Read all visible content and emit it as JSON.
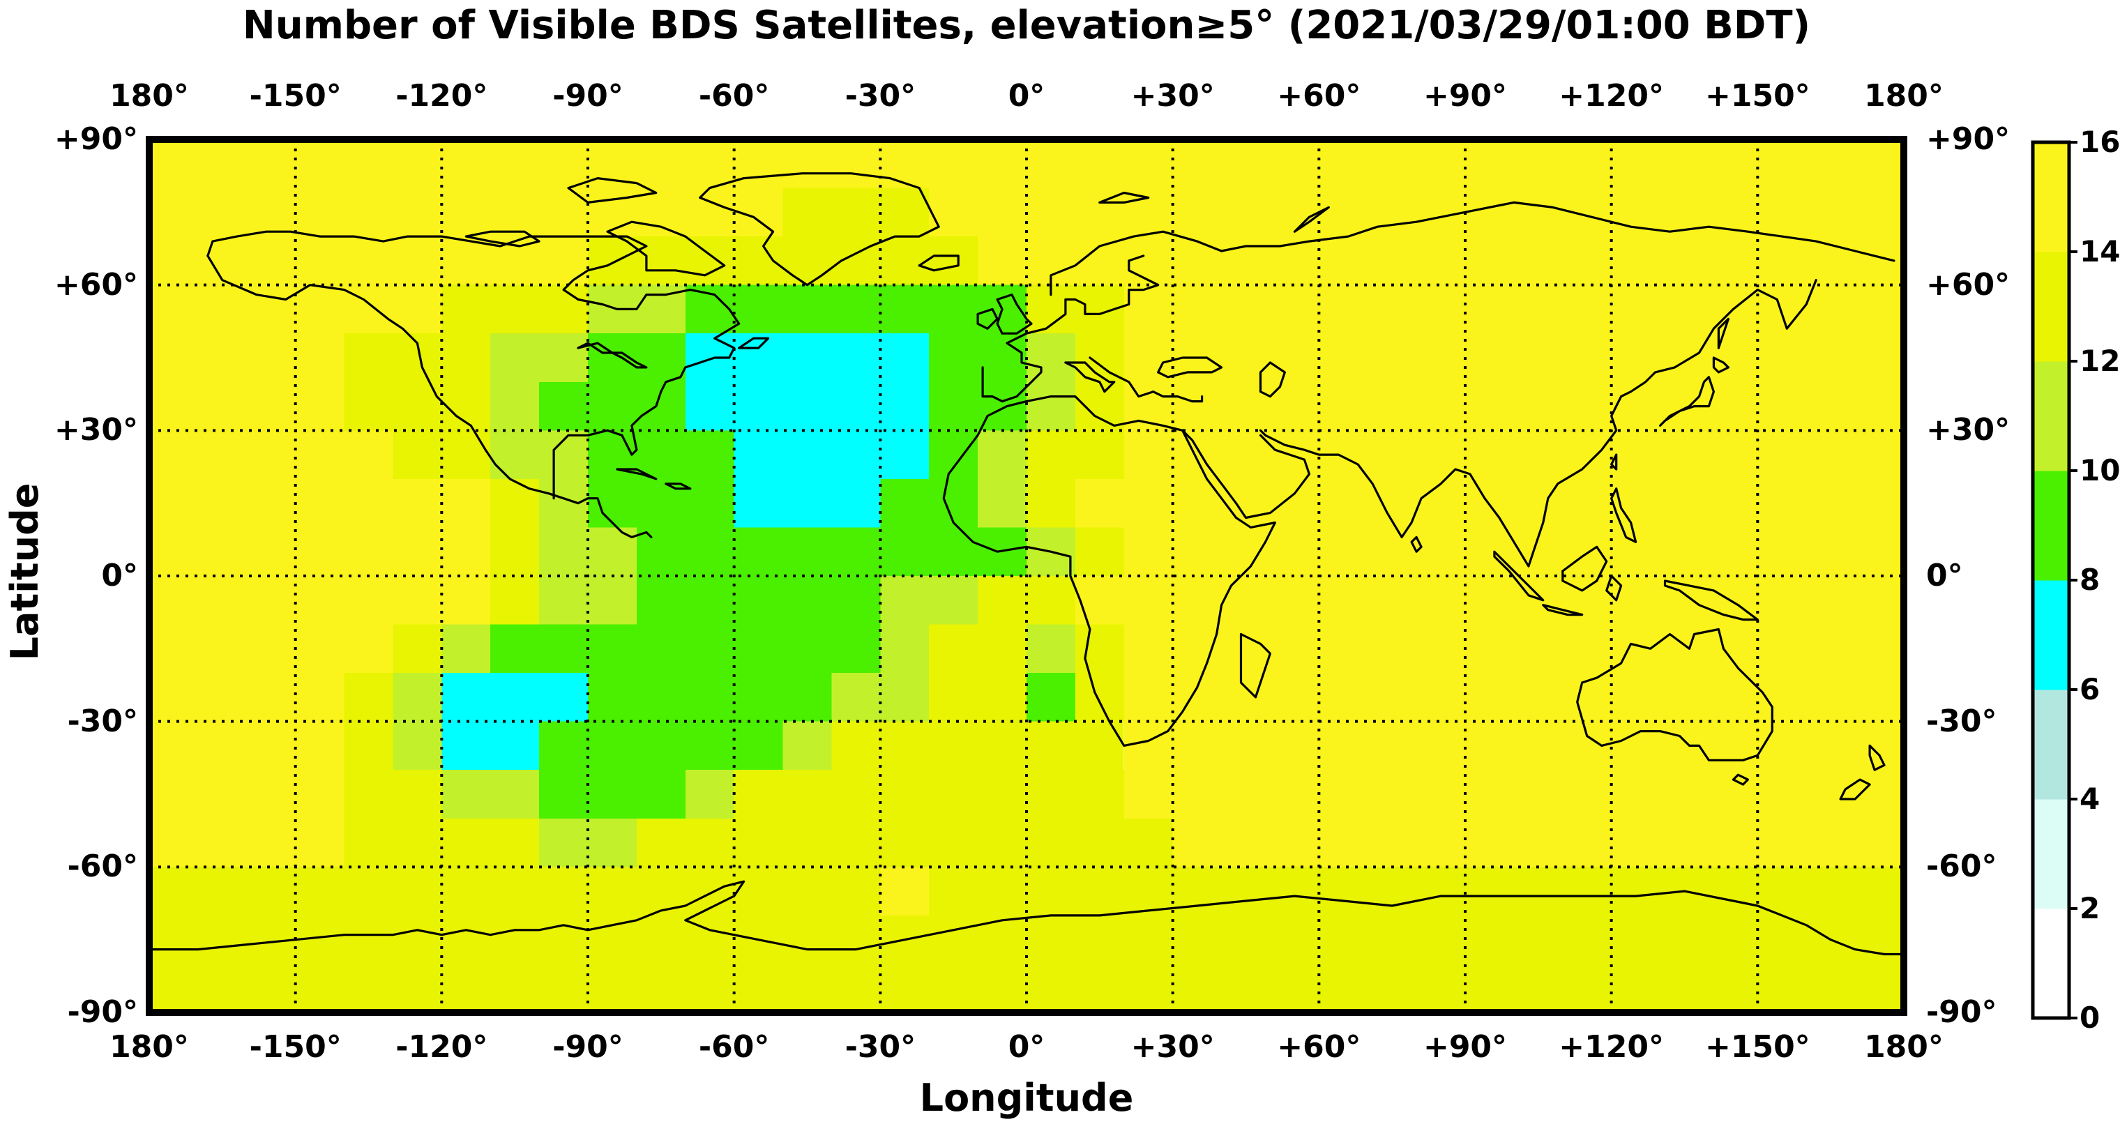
{
  "title": "Number of Visible BDS Satellites, elevation≥5° (2021/03/29/01:00 BDT)",
  "axes": {
    "x": {
      "label": "Longitude",
      "tick_values": [
        -180,
        -150,
        -120,
        -90,
        -60,
        -30,
        0,
        30,
        60,
        90,
        120,
        150,
        180
      ],
      "tick_labels": [
        "180°",
        "-150°",
        "-120°",
        "-90°",
        "-60°",
        "-30°",
        "0°",
        "+30°",
        "+60°",
        "+90°",
        "+120°",
        "+150°",
        "180°"
      ]
    },
    "y": {
      "label": "Latitude",
      "tick_values": [
        90,
        60,
        30,
        0,
        -30,
        -60,
        -90
      ],
      "tick_labels": [
        "+90°",
        "+60°",
        "+30°",
        "0°",
        "-30°",
        "-60°",
        "-90°"
      ]
    }
  },
  "colorbar": {
    "min": 0,
    "max": 16,
    "tick_step": 2,
    "tick_labels_top_to_bottom": [
      "16",
      "14",
      "12",
      "10",
      "8",
      "6",
      "4",
      "2",
      "0"
    ],
    "segments": [
      {
        "range": [
          0,
          2
        ],
        "color": "#FFFFFF"
      },
      {
        "range": [
          2,
          4
        ],
        "color": "#DCFDF6"
      },
      {
        "range": [
          4,
          6
        ],
        "color": "#B2E7E0"
      },
      {
        "range": [
          6,
          8
        ],
        "color": "#00FFFF"
      },
      {
        "range": [
          8,
          10
        ],
        "color": "#4AF000"
      },
      {
        "range": [
          10,
          12
        ],
        "color": "#C2F12B"
      },
      {
        "range": [
          12,
          14
        ],
        "color": "#E9F402"
      },
      {
        "range": [
          14,
          16
        ],
        "color": "#FBF41C"
      }
    ]
  },
  "chart_data": {
    "type": "heatmap",
    "title": "Number of Visible BDS Satellites, elevation≥5° (2021/03/29/01:00 BDT)",
    "xlabel": "Longitude",
    "ylabel": "Latitude",
    "x_range": [
      -180,
      180
    ],
    "y_range": [
      -90,
      90
    ],
    "grid_step_deg": 30,
    "cell_deg": 10,
    "value_units": "visible BDS satellites",
    "encoding": "rows from +90N to -90S, each row = run-length pairs [cell_count, value], 36 cells of 10 deg per row",
    "grid_runs": [
      [
        [
          36,
          15
        ]
      ],
      [
        [
          13,
          15
        ],
        [
          3,
          13
        ],
        [
          20,
          15
        ]
      ],
      [
        [
          9,
          15
        ],
        [
          8,
          13
        ],
        [
          19,
          15
        ]
      ],
      [
        [
          6,
          15
        ],
        [
          3,
          13
        ],
        [
          2,
          11
        ],
        [
          7,
          9
        ],
        [
          2,
          13
        ],
        [
          16,
          15
        ]
      ],
      [
        [
          4,
          15
        ],
        [
          3,
          13
        ],
        [
          2,
          11
        ],
        [
          2,
          9
        ],
        [
          5,
          7
        ],
        [
          2,
          9
        ],
        [
          1,
          11
        ],
        [
          1,
          13
        ],
        [
          16,
          15
        ]
      ],
      [
        [
          4,
          15
        ],
        [
          3,
          13
        ],
        [
          1,
          11
        ],
        [
          3,
          9
        ],
        [
          5,
          7
        ],
        [
          2,
          9
        ],
        [
          1,
          11
        ],
        [
          1,
          13
        ],
        [
          16,
          15
        ]
      ],
      [
        [
          5,
          15
        ],
        [
          2,
          13
        ],
        [
          2,
          11
        ],
        [
          3,
          9
        ],
        [
          4,
          7
        ],
        [
          1,
          9
        ],
        [
          1,
          11
        ],
        [
          2,
          13
        ],
        [
          16,
          15
        ]
      ],
      [
        [
          7,
          15
        ],
        [
          1,
          13
        ],
        [
          1,
          11
        ],
        [
          3,
          9
        ],
        [
          3,
          7
        ],
        [
          2,
          9
        ],
        [
          1,
          11
        ],
        [
          1,
          13
        ],
        [
          17,
          15
        ]
      ],
      [
        [
          7,
          15
        ],
        [
          1,
          13
        ],
        [
          2,
          11
        ],
        [
          8,
          9
        ],
        [
          1,
          11
        ],
        [
          1,
          13
        ],
        [
          16,
          15
        ]
      ],
      [
        [
          7,
          15
        ],
        [
          1,
          13
        ],
        [
          2,
          11
        ],
        [
          5,
          9
        ],
        [
          2,
          11
        ],
        [
          2,
          13
        ],
        [
          17,
          15
        ]
      ],
      [
        [
          5,
          15
        ],
        [
          1,
          13
        ],
        [
          1,
          11
        ],
        [
          8,
          9
        ],
        [
          1,
          11
        ],
        [
          2,
          13
        ],
        [
          1,
          11
        ],
        [
          1,
          13
        ],
        [
          16,
          15
        ]
      ],
      [
        [
          4,
          15
        ],
        [
          1,
          13
        ],
        [
          1,
          11
        ],
        [
          3,
          7
        ],
        [
          5,
          9
        ],
        [
          2,
          11
        ],
        [
          2,
          13
        ],
        [
          1,
          9
        ],
        [
          1,
          13
        ],
        [
          16,
          15
        ]
      ],
      [
        [
          4,
          15
        ],
        [
          1,
          13
        ],
        [
          1,
          11
        ],
        [
          2,
          7
        ],
        [
          5,
          9
        ],
        [
          1,
          11
        ],
        [
          6,
          13
        ],
        [
          16,
          15
        ]
      ],
      [
        [
          4,
          15
        ],
        [
          2,
          13
        ],
        [
          2,
          11
        ],
        [
          3,
          9
        ],
        [
          1,
          11
        ],
        [
          8,
          13
        ],
        [
          16,
          15
        ]
      ],
      [
        [
          4,
          15
        ],
        [
          4,
          13
        ],
        [
          2,
          11
        ],
        [
          11,
          13
        ],
        [
          15,
          15
        ]
      ],
      [
        [
          15,
          13
        ],
        [
          1,
          15
        ],
        [
          20,
          13
        ]
      ],
      [
        [
          36,
          13
        ]
      ],
      [
        [
          36,
          13
        ]
      ]
    ]
  }
}
